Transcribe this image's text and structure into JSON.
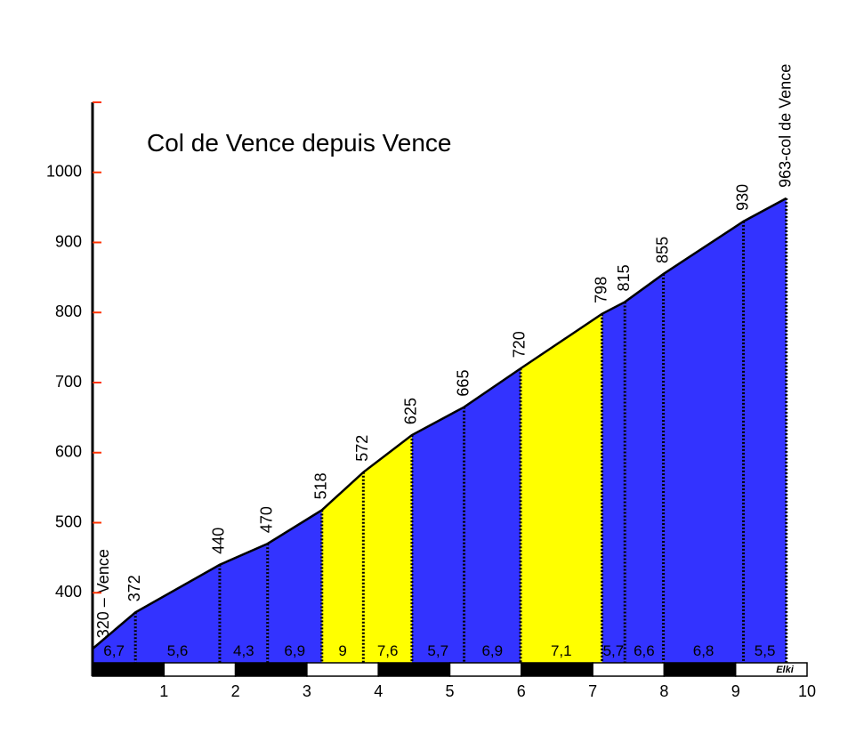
{
  "chart_data": {
    "type": "area",
    "title": "Col de Vence depuis Vence",
    "x": [
      0,
      0.6,
      1.78,
      2.45,
      3.21,
      3.79,
      4.47,
      5.2,
      5.99,
      7.13,
      7.45,
      7.99,
      9.11,
      9.71
    ],
    "values": [
      320,
      372,
      440,
      470,
      518,
      572,
      625,
      665,
      720,
      798,
      815,
      855,
      930,
      963
    ],
    "value_labels": [
      "320 – Vence",
      "372",
      "440",
      "470",
      "518",
      "572",
      "625",
      "665",
      "720",
      "798",
      "815",
      "855",
      "930",
      "963-col de Vence"
    ],
    "segments": {
      "values": [
        6.7,
        5.6,
        4.3,
        6.9,
        9,
        7.6,
        5.7,
        6.9,
        7.1,
        5.7,
        6.6,
        6.8,
        5.5
      ],
      "value_labels": [
        "6,7",
        "5,6",
        "4,3",
        "6,9",
        "9",
        "7,6",
        "5,7",
        "6,9",
        "7,1",
        "5,7",
        "6,6",
        "6,8",
        "5,5"
      ],
      "colors": [
        "#3333ff",
        "#3333ff",
        "#3333ff",
        "#3333ff",
        "#ffff00",
        "#ffff00",
        "#3333ff",
        "#3333ff",
        "#ffff00",
        "#3333ff",
        "#3333ff",
        "#3333ff",
        "#3333ff"
      ]
    },
    "xlim": [
      0,
      10
    ],
    "xticks": [
      1,
      2,
      3,
      4,
      5,
      6,
      7,
      8,
      9,
      10
    ],
    "ylim": [
      300,
      1100
    ],
    "yticks": [
      400,
      500,
      600,
      700,
      800,
      900,
      1000
    ],
    "credit": "Elki"
  }
}
